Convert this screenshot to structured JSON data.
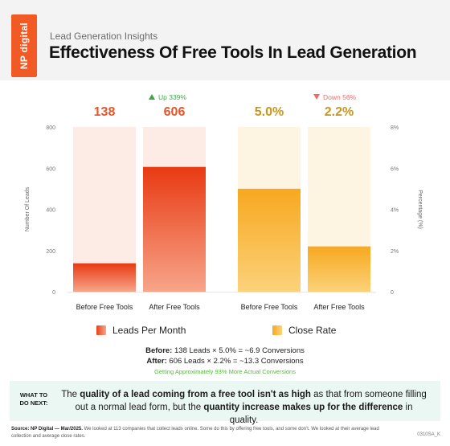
{
  "header": {
    "logo": "NP digital",
    "subtitle": "Lead Generation Insights",
    "title": "Effectiveness Of Free Tools In Lead Generation"
  },
  "chart_data": {
    "type": "bar",
    "left_axis": {
      "label": "Number Of Leads",
      "ticks": [
        "0",
        "200",
        "400",
        "600",
        "800"
      ],
      "range": [
        0,
        800
      ]
    },
    "right_axis": {
      "label": "Percentage (%)",
      "ticks": [
        "0",
        "2%",
        "4%",
        "6%",
        "8%"
      ],
      "range": [
        0,
        8
      ]
    },
    "groups": [
      {
        "series": "Leads Per Month",
        "axis": "left",
        "color_top": "#e83a12",
        "color_bottom": "#f7a58a",
        "bg": "#fdebe6",
        "bars": [
          {
            "category": "Before Free Tools",
            "value": 138,
            "value_label": "138"
          },
          {
            "category": "After Free Tools",
            "value": 606,
            "value_label": "606"
          }
        ],
        "change": {
          "direction": "up",
          "label": "Up 339%",
          "color": "#3aa845"
        }
      },
      {
        "series": "Close Rate",
        "axis": "right",
        "color_top": "#f7a81f",
        "color_bottom": "#fbd27a",
        "bg": "#fef4e2",
        "bars": [
          {
            "category": "Before Free Tools",
            "value": 5.0,
            "value_label": "5.0%"
          },
          {
            "category": "After Free Tools",
            "value": 2.2,
            "value_label": "2.2%"
          }
        ],
        "change": {
          "direction": "down",
          "label": "Down 56%",
          "color": "#f06a6a"
        }
      }
    ],
    "value_label_colors": {
      "leads": "#e8552a",
      "rate": "#c8961e"
    }
  },
  "legend": [
    {
      "label": "Leads Per Month",
      "color_a": "#e8401a",
      "color_b": "#f7a58a"
    },
    {
      "label": "Close Rate",
      "color_a": "#f7a81f",
      "color_b": "#fbd27a"
    }
  ],
  "calc": {
    "before_label": "Before:",
    "before_text": "138 Leads × 5.0% = ~6.9 Conversions",
    "after_label": "After:",
    "after_text": "606 Leads × 2.2% = ~13.3 Conversions",
    "note": "Getting Approximately 93% More Actual Conversions"
  },
  "next": {
    "label": "WHAT TO DO NEXT:",
    "p1": "The ",
    "b1": "quality of a lead coming from a free tool isn't as high",
    "p2": " as that from someone filling out a normal lead form, but the ",
    "b2": "quantity increase makes up for the difference",
    "p3": " in quality."
  },
  "source": {
    "label": "Source: NP Digital — Mar/2025.",
    "text": " We looked at 113 companies that collect leads online. Some do this by offering free tools, and some don't. We looked at their average lead collection and average close rates."
  },
  "code": "0310SA_K"
}
